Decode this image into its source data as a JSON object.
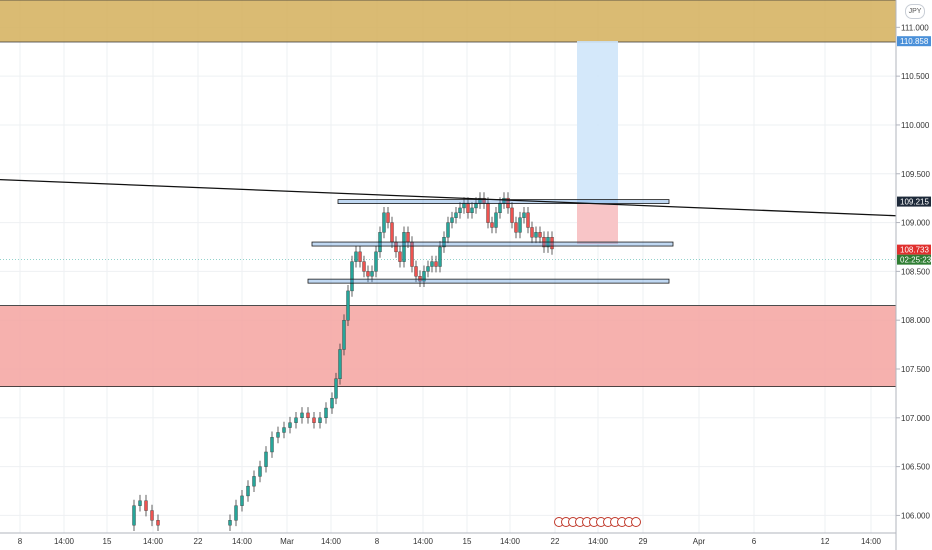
{
  "currency": "JPY",
  "chart_data": {
    "type": "candlestick",
    "y_axis": {
      "range": [
        105.82,
        111.28
      ],
      "ticks": [
        "111.000",
        "110.500",
        "110.000",
        "109.500",
        "109.000",
        "108.500",
        "108.000",
        "107.500",
        "107.000",
        "106.500",
        "106.000"
      ]
    },
    "x_axis": {
      "ticks": [
        "8",
        "14:00",
        "15",
        "14:00",
        "22",
        "14:00",
        "Mar",
        "14:00",
        "8",
        "14:00",
        "15",
        "14:00",
        "22",
        "14:00",
        "29",
        "Apr",
        "6",
        "12",
        "14:00"
      ]
    },
    "price_badges": [
      {
        "value": "110.858",
        "color": "#4a90d9"
      },
      {
        "value": "109.215",
        "color": "#1e2a3a"
      },
      {
        "value": "108.733",
        "color": "#e0302e"
      },
      {
        "value": "02:25:23",
        "color": "#2e7d32"
      }
    ],
    "zones": [
      {
        "name": "supply-zone",
        "top": 111.28,
        "bottom": 110.85,
        "color": "#d4af5a"
      },
      {
        "name": "demand-zone",
        "top": 108.15,
        "bottom": 107.32,
        "color": "#f5a3a0"
      }
    ],
    "levels": [
      109.215,
      108.78,
      108.4
    ],
    "trendline": {
      "start": [
        0,
        109.44
      ],
      "end": [
        1.0,
        109.07
      ]
    },
    "position": {
      "entry": 109.2,
      "target": 110.86,
      "stop": 108.78
    },
    "current_price": 108.733,
    "colors": {
      "up": "#26a69a",
      "down": "#ef5350"
    }
  }
}
